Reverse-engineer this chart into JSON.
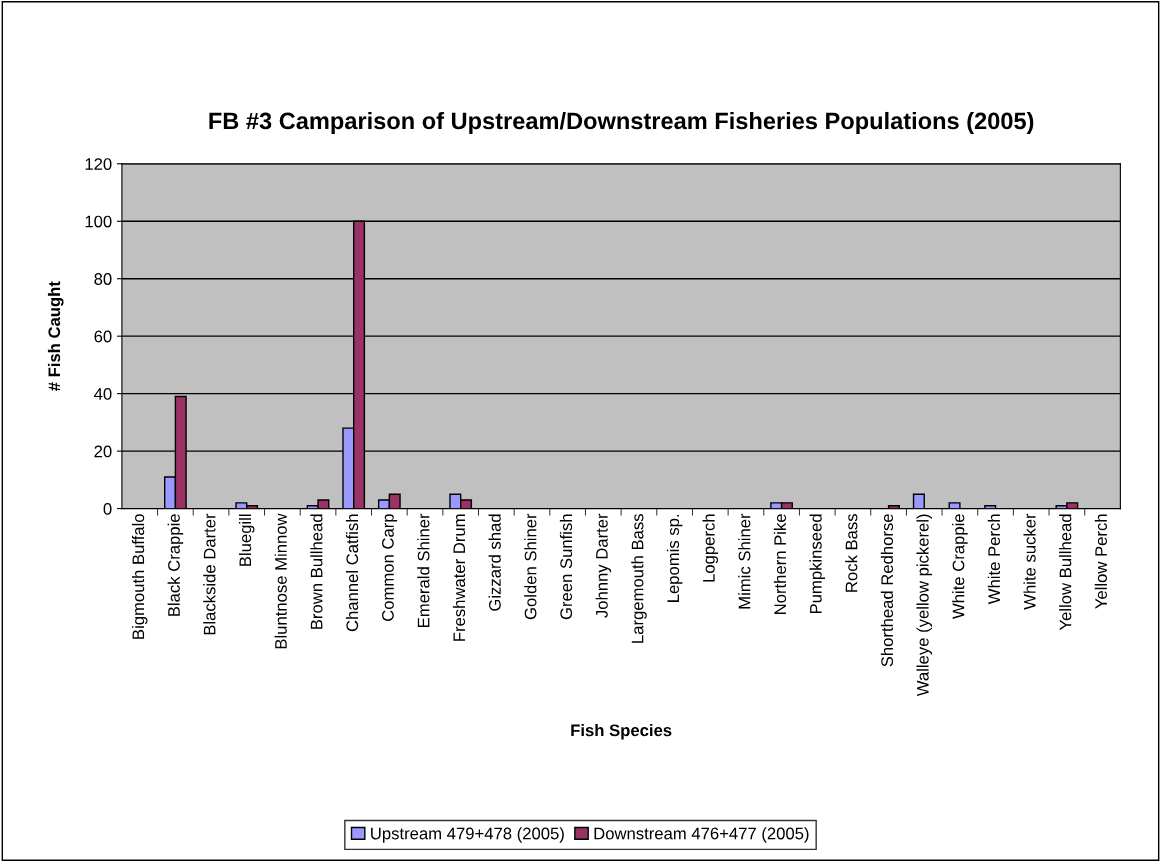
{
  "chart_data": {
    "type": "bar",
    "title": "FB #3 Camparison of Upstream/Downstream Fisheries Populations (2005)",
    "xlabel": "Fish Species",
    "ylabel": "# Fish Caught",
    "categories": [
      "Bigmouth Buffalo",
      "Black Crappie",
      "Blackside Darter",
      "Bluegill",
      "Bluntnose Minnow",
      "Brown Bullhead",
      "Channel Catfish",
      "Common Carp",
      "Emerald Shiner",
      "Freshwater Drum",
      "Gizzard shad",
      "Golden Shiner",
      "Green Sunfish",
      "Johnny Darter",
      "Largemouth Bass",
      "Lepomis sp.",
      "Logperch",
      "Mimic Shiner",
      "Northern Pike",
      "Pumpkinseed",
      "Rock Bass",
      "Shorthead Redhorse",
      "Walleye (yellow pickerel)",
      "White Crappie",
      "White Perch",
      "White sucker",
      "Yellow Bullhead",
      "Yellow Perch"
    ],
    "series": [
      {
        "name": "Upstream 479+478 (2005)",
        "color": "#9999ff",
        "values": [
          null,
          11,
          null,
          2,
          null,
          1,
          28,
          3,
          null,
          5,
          null,
          null,
          null,
          null,
          null,
          null,
          null,
          null,
          2,
          null,
          null,
          null,
          5,
          2,
          1,
          null,
          1,
          null
        ]
      },
      {
        "name": "Downstream 476+477 (2005)",
        "color": "#993366",
        "values": [
          null,
          39,
          null,
          1,
          null,
          3,
          100,
          5,
          null,
          3,
          null,
          null,
          null,
          null,
          null,
          null,
          null,
          null,
          2,
          null,
          null,
          1,
          null,
          null,
          null,
          null,
          2,
          null
        ]
      }
    ],
    "ylim": [
      0,
      120
    ],
    "yticks": [
      0,
      20,
      40,
      60,
      80,
      100,
      120
    ],
    "grid": "y",
    "legend": "bottom"
  }
}
